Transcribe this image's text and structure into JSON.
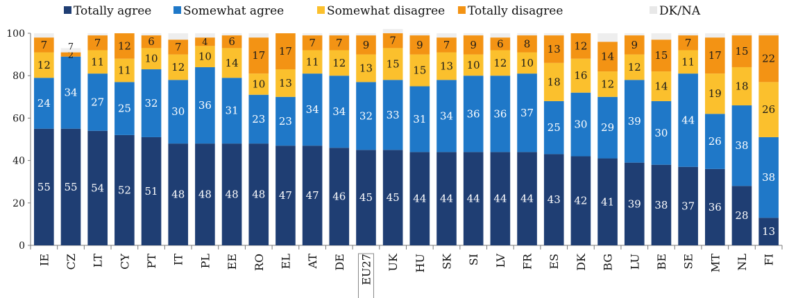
{
  "chart_data": {
    "type": "bar",
    "stacked": true,
    "title": "",
    "xlabel": "",
    "ylabel": "",
    "ylim": [
      0,
      100
    ],
    "yticks": [
      0,
      20,
      40,
      60,
      80,
      100
    ],
    "grid": false,
    "legend_position": "top",
    "highlighted_category": "EU27",
    "categories": [
      "IE",
      "CZ",
      "LT",
      "CY",
      "PT",
      "IT",
      "PL",
      "EE",
      "RO",
      "EL",
      "AT",
      "DE",
      "EU27",
      "UK",
      "HU",
      "SK",
      "SI",
      "LV",
      "FR",
      "ES",
      "DK",
      "BG",
      "LU",
      "BE",
      "SE",
      "MT",
      "NL",
      "FI"
    ],
    "series": [
      {
        "name": "Totally agree",
        "color": "#1f3e73",
        "label_color": "#ffffff",
        "values": [
          55,
          55,
          54,
          52,
          51,
          48,
          48,
          48,
          48,
          47,
          47,
          46,
          45,
          45,
          44,
          44,
          44,
          44,
          44,
          43,
          42,
          41,
          39,
          38,
          37,
          36,
          28,
          13
        ]
      },
      {
        "name": "Somewhat agree",
        "color": "#1f78c8",
        "label_color": "#ffffff",
        "values": [
          24,
          34,
          27,
          25,
          32,
          30,
          36,
          31,
          23,
          23,
          34,
          34,
          32,
          33,
          31,
          34,
          36,
          36,
          37,
          25,
          30,
          29,
          39,
          30,
          44,
          26,
          38,
          38
        ]
      },
      {
        "name": "Somewhat disagree",
        "color": "#fbc02d",
        "label_color": "#1a1a1a",
        "values": [
          12,
          null,
          11,
          11,
          10,
          12,
          10,
          14,
          10,
          13,
          11,
          12,
          13,
          15,
          15,
          13,
          10,
          12,
          10,
          18,
          16,
          12,
          12,
          14,
          11,
          19,
          18,
          26
        ]
      },
      {
        "name": "Totally disagree",
        "color": "#f39314",
        "label_color": "#1a1a1a",
        "values": [
          7,
          2,
          7,
          12,
          6,
          7,
          4,
          6,
          17,
          17,
          7,
          7,
          9,
          7,
          9,
          7,
          9,
          6,
          8,
          13,
          12,
          14,
          9,
          15,
          7,
          17,
          15,
          22
        ]
      },
      {
        "name": "DK/NA",
        "color": "#eeeeee",
        "label_color": "#1a1a1a",
        "values": [
          2,
          2,
          1,
          0,
          1,
          3,
          2,
          1,
          2,
          0,
          1,
          1,
          1,
          2,
          1,
          2,
          1,
          2,
          1,
          1,
          0,
          4,
          1,
          3,
          1,
          2,
          1,
          1
        ]
      }
    ],
    "extra_labels": [
      {
        "category": "CZ",
        "series": "Somewhat disagree",
        "value": 7
      }
    ],
    "show_value_labels_for": [
      "Totally agree",
      "Somewhat agree",
      "Somewhat disagree",
      "Totally disagree"
    ]
  }
}
